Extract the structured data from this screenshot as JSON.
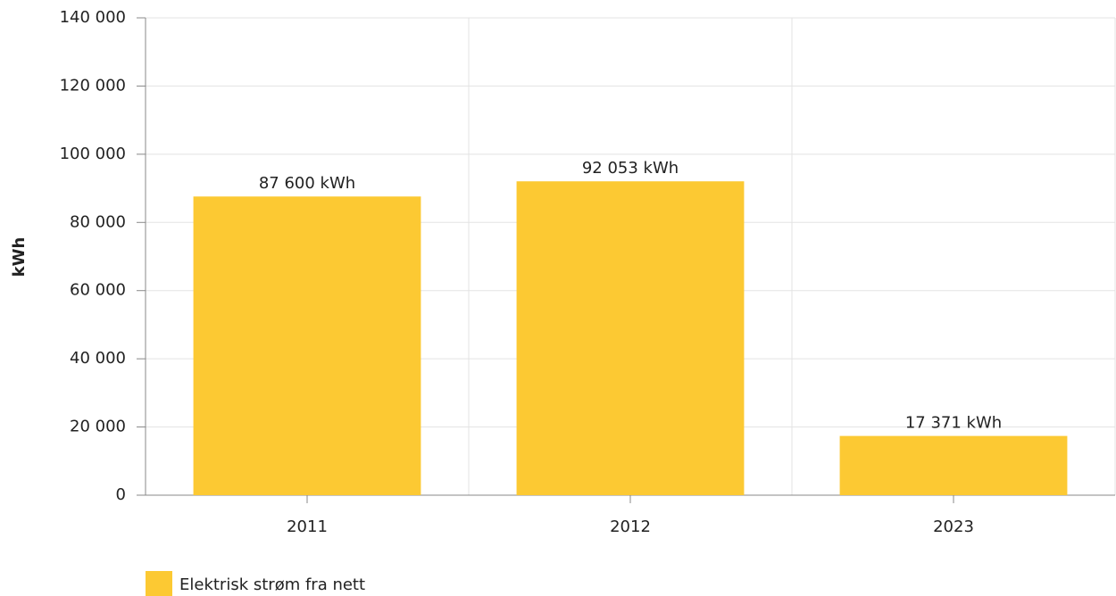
{
  "chart_data": {
    "type": "bar",
    "y_label": "kWh",
    "categories": [
      "2011",
      "2012",
      "2023"
    ],
    "series": [
      {
        "name": "Elektrisk strøm fra nett",
        "color": "#fcc933",
        "values": [
          87600,
          92053,
          17371
        ],
        "value_labels": [
          "87 600 kWh",
          "92 053 kWh",
          "17 371 kWh"
        ]
      }
    ],
    "ylim": [
      0,
      140000
    ],
    "yticks": [
      0,
      {
        "value": 20000,
        "label": "20 000"
      },
      {
        "value": 40000,
        "label": "40 000"
      },
      {
        "value": 60000,
        "label": "60 000"
      },
      {
        "value": 80000,
        "label": "80 000"
      },
      {
        "value": 100000,
        "label": "100 000"
      },
      {
        "value": 120000,
        "label": "120 000"
      },
      {
        "value": 140000,
        "label": "140 000"
      }
    ],
    "grid": true
  }
}
